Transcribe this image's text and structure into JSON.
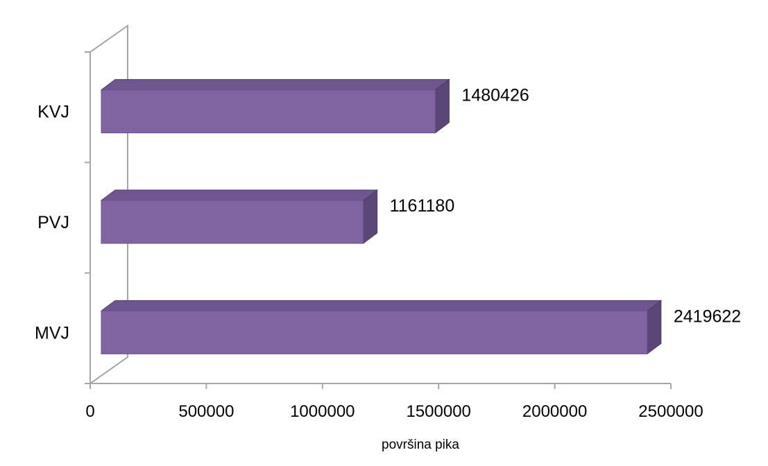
{
  "chart_data": {
    "type": "bar",
    "orientation": "horizontal",
    "three_d": true,
    "categories": [
      "MVJ",
      "PVJ",
      "KVJ"
    ],
    "values": [
      2419622,
      1161180,
      1480426
    ],
    "data_labels": [
      "2419622",
      "1161180",
      "1480426"
    ],
    "xlabel": "površina pika",
    "ylabel": "",
    "title": "",
    "xlim": [
      0,
      2500000
    ],
    "x_ticks": [
      0,
      500000,
      1000000,
      1500000,
      2000000,
      2500000
    ],
    "x_tick_labels": [
      "0",
      "500000",
      "1000000",
      "1500000",
      "2000000",
      "2500000"
    ],
    "grid": false,
    "legend": "none",
    "colors": {
      "bar_front": "#8064a2",
      "bar_top": "#6f5690",
      "bar_side": "#5a4677",
      "axis": "#a6a6a6"
    }
  }
}
